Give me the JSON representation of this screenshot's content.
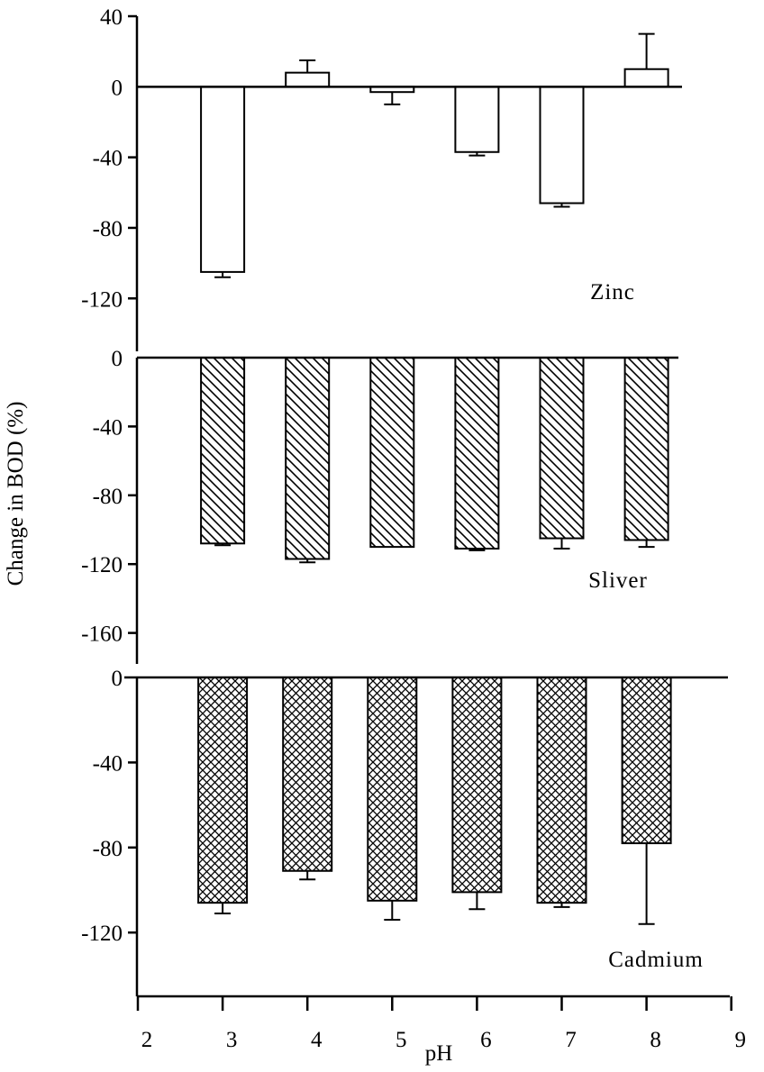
{
  "chart_data": {
    "type": "bar",
    "ylabel": "Change in BOD (%)",
    "xlabel": "pH",
    "x_ticks": [
      "2",
      "3",
      "4",
      "5",
      "6",
      "7",
      "8",
      "9"
    ],
    "x_range": [
      2,
      9
    ],
    "panels": [
      {
        "label": "Zinc",
        "pattern": "none",
        "ylim": [
          -150,
          40
        ],
        "yticks": [
          "40",
          "0",
          "-40",
          "-80",
          "-120"
        ],
        "ytick_values": [
          40,
          0,
          -40,
          -80,
          -120
        ],
        "x": [
          3,
          4,
          5,
          6,
          7,
          8
        ],
        "values": [
          -105,
          8,
          -3,
          -37,
          -66,
          10
        ],
        "errors": [
          3,
          7,
          7,
          2,
          2,
          20
        ]
      },
      {
        "label": "Sliver",
        "pattern": "diagonal",
        "ylim": [
          -178,
          0
        ],
        "yticks": [
          "0",
          "-40",
          "-80",
          "-120",
          "-160"
        ],
        "ytick_values": [
          0,
          -40,
          -80,
          -120,
          -160
        ],
        "x": [
          3,
          4,
          5,
          6,
          7,
          8
        ],
        "values": [
          -108,
          -117,
          -110,
          -111,
          -105,
          -106
        ],
        "errors": [
          1,
          2,
          0,
          1,
          6,
          4
        ]
      },
      {
        "label": "Cadmium",
        "pattern": "crosshatch",
        "ylim": [
          -150,
          0
        ],
        "yticks": [
          "0",
          "-40",
          "-80",
          "-120"
        ],
        "ytick_values": [
          0,
          -40,
          -80,
          -120
        ],
        "x": [
          3,
          4,
          5,
          6,
          7,
          8
        ],
        "values": [
          -106,
          -91,
          -105,
          -101,
          -106,
          -78
        ],
        "errors": [
          5,
          4,
          9,
          8,
          2,
          38
        ]
      }
    ]
  }
}
